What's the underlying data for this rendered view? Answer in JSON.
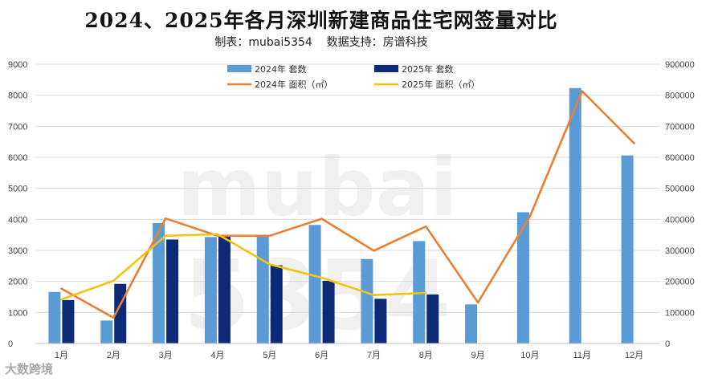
{
  "header": {
    "title": "2024、2025年各月深圳新建商品住宅网签量对比",
    "subtitle": "制表：mubai5354    数据支持：房谱科技"
  },
  "watermark": {
    "main": "mubai",
    "secondary": "5354",
    "logo": "大数跨境"
  },
  "chart_data": {
    "type": "bar",
    "categories": [
      "1月",
      "2月",
      "3月",
      "4月",
      "5月",
      "6月",
      "7月",
      "8月",
      "9月",
      "10月",
      "11月",
      "12月"
    ],
    "series": [
      {
        "name": "2024年 套数",
        "kind": "bar",
        "axis": "left",
        "color": "#5b9bd5",
        "values": [
          1660,
          740,
          3880,
          3430,
          3450,
          3820,
          2720,
          3300,
          1260,
          4230,
          8230,
          6060
        ]
      },
      {
        "name": "2025年 套数",
        "kind": "bar",
        "axis": "left",
        "color": "#0d2a78",
        "values": [
          1400,
          1920,
          3350,
          3490,
          2520,
          2020,
          1440,
          1580,
          null,
          null,
          null,
          null
        ]
      },
      {
        "name": "2024年 面积（㎡）",
        "kind": "line",
        "axis": "right",
        "color": "#ed7d31",
        "values": [
          177000,
          83000,
          403000,
          347000,
          347000,
          402000,
          299000,
          377000,
          132000,
          410000,
          813000,
          645000
        ]
      },
      {
        "name": "2025年 面积（㎡）",
        "kind": "line",
        "axis": "right",
        "color": "#f2c40f",
        "values": [
          142000,
          202000,
          347000,
          352000,
          255000,
          212000,
          156000,
          163000,
          null,
          null,
          null,
          null
        ]
      }
    ],
    "y_left": {
      "min": 0,
      "max": 9000,
      "ticks": [
        0,
        1000,
        2000,
        3000,
        4000,
        5000,
        6000,
        7000,
        8000,
        9000
      ]
    },
    "y_right": {
      "min": 0,
      "max": 900000,
      "ticks": [
        0,
        100000,
        200000,
        300000,
        400000,
        500000,
        600000,
        700000,
        800000,
        900000
      ]
    },
    "grid": true,
    "legend_position": "top-center"
  }
}
